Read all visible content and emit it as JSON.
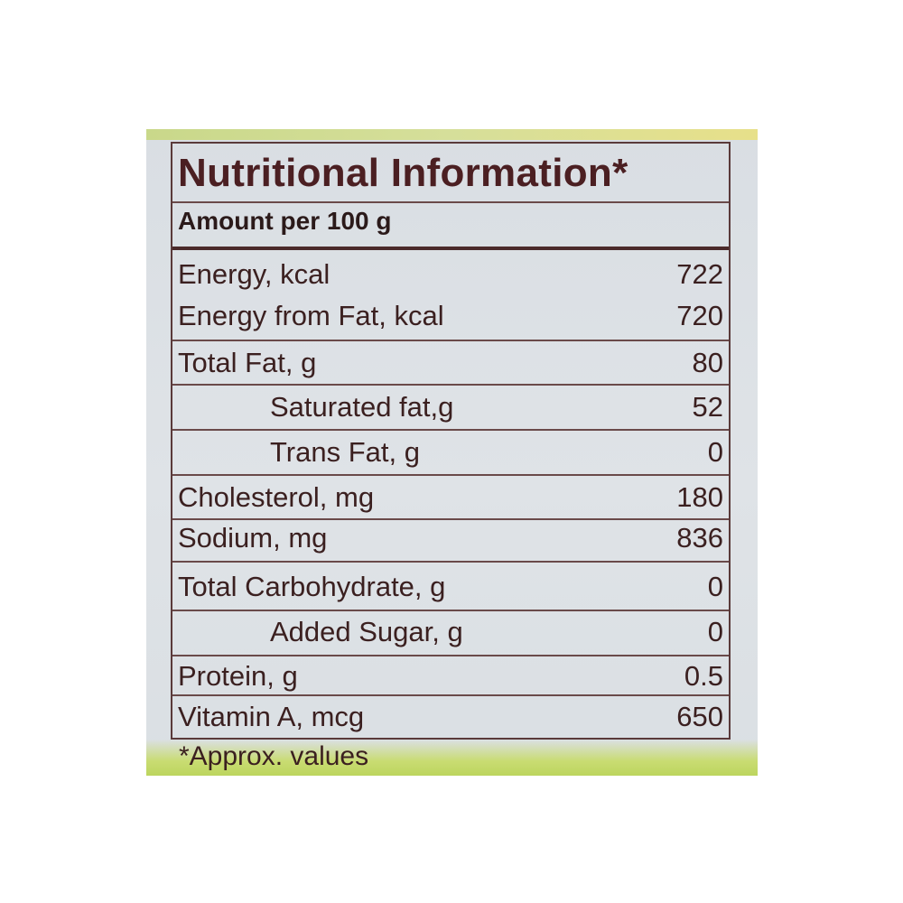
{
  "label": {
    "title": "Nutritional Information*",
    "subtitle": "Amount per 100 g",
    "rows": [
      {
        "name": "Energy, kcal",
        "value": "722"
      },
      {
        "name": "Energy from Fat, kcal",
        "value": "720"
      },
      {
        "name": "Total Fat, g",
        "value": "80"
      },
      {
        "name": "Saturated fat,g",
        "value": "52"
      },
      {
        "name": "Trans Fat, g",
        "value": "0"
      },
      {
        "name": "Cholesterol, mg",
        "value": "180"
      },
      {
        "name": "Sodium, mg",
        "value": "836"
      },
      {
        "name": "Total Carbohydrate, g",
        "value": "0"
      },
      {
        "name": "Added Sugar, g",
        "value": "0"
      },
      {
        "name": "Protein, g",
        "value": "0.5"
      },
      {
        "name": "Vitamin A, mcg",
        "value": "650"
      }
    ],
    "footnote": "*Approx. values"
  },
  "colors": {
    "text": "#3b2020",
    "title": "#4b1f22",
    "panel": "#dde1e5",
    "accent_green": "#c9dc72"
  }
}
